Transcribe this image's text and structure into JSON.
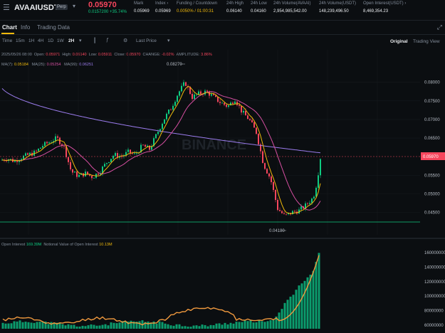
{
  "header": {
    "symbol": "AVAAIUSDT",
    "contract_type": "Perp",
    "last_price": "0.05970",
    "sub_price": "0.0157200",
    "change_pct": "+35.74%",
    "stats": [
      {
        "label": "Mark",
        "value": "0.05969"
      },
      {
        "label": "Index ›",
        "value": "0.05969"
      },
      {
        "label": "Funding / Countdown",
        "value": "0.0050% / 01:00:31"
      },
      {
        "label": "24h High",
        "value": "0.06140"
      },
      {
        "label": "24h Low",
        "value": "0.04160"
      },
      {
        "label": "24h Volume(AVAAI)",
        "value": "2,954,985,542.00"
      },
      {
        "label": "24h Volume(USDT)",
        "value": "148,239,496.50"
      },
      {
        "label": "Open Interest(USDT) ›",
        "value": "8,469,354.23"
      }
    ]
  },
  "tabs": {
    "chart": "Chart",
    "info": "Info",
    "trading_data": "Trading Data"
  },
  "toolbar": {
    "time_label": "Time",
    "intervals": [
      "15m",
      "1H",
      "4H",
      "1D",
      "1W"
    ],
    "active_interval": "2H",
    "price_type": "Last Price",
    "view_original": "Original",
    "view_tradingview": "Trading View",
    "icons": [
      "candle-type-icon",
      "indicator-icon",
      "settings-icon"
    ]
  },
  "ohlc": {
    "date": "2025/05/26 08:00",
    "open_label": "Open:",
    "open": "0.05971",
    "high_label": "High:",
    "high": "0.06140",
    "low_label": "Low:",
    "low": "0.05911",
    "close_label": "Close:",
    "close": "0.05970",
    "change_label": "CHANGE:",
    "change": "-0.02%",
    "amplitude_label": "AMPLITUDE:",
    "amplitude": "3.86%"
  },
  "ma": {
    "ma7_label": "MA(7):",
    "ma7": "0.05184",
    "ma25_label": "MA(25):",
    "ma25": "0.05254",
    "ma99_label": "MA(99):",
    "ma99": "0.06251"
  },
  "watermark": "BINANCE",
  "price_axis": [
    "0.08000",
    "0.07500",
    "0.07000",
    "0.06500",
    "0.05500",
    "0.05000",
    "0.04500"
  ],
  "current_price_tag": "0.05970",
  "high_marker": "0.08270",
  "low_marker": "0.04180",
  "open_interest": {
    "label": "Open Interest",
    "value": "169.39M",
    "notional_label": "Notional Value of Open Interest",
    "notional_value": "10.13M",
    "axis": [
      "160000000",
      "140000000",
      "120000000",
      "100000000",
      "80000000",
      "60000000"
    ]
  },
  "colors": {
    "up": "#0ecb81",
    "down": "#f6465d",
    "ma7": "#f0b90b",
    "ma25": "#d64fa1",
    "ma99": "#9b7ced",
    "accent": "#f0b90b"
  }
}
